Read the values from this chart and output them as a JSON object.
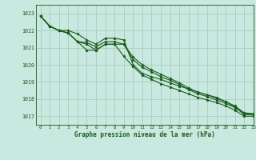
{
  "title": "Graphe pression niveau de la mer (hPa)",
  "bg_color": "#c8e8e0",
  "line_color": "#1a5c1a",
  "grid_color": "#a0c8b8",
  "xlim": [
    -0.5,
    23
  ],
  "ylim": [
    1016.5,
    1023.5
  ],
  "yticks": [
    1017,
    1018,
    1019,
    1020,
    1021,
    1022,
    1023
  ],
  "xticks": [
    0,
    1,
    2,
    3,
    4,
    5,
    6,
    7,
    8,
    9,
    10,
    11,
    12,
    13,
    14,
    15,
    16,
    17,
    18,
    19,
    20,
    21,
    22,
    23
  ],
  "series": [
    [
      1022.85,
      1022.25,
      1022.0,
      1022.0,
      1021.8,
      1021.45,
      1021.2,
      1021.55,
      1021.55,
      1021.45,
      1020.0,
      1019.5,
      1019.3,
      1019.15,
      1018.95,
      1018.75,
      1018.6,
      1018.4,
      1018.25,
      1018.1,
      1017.85,
      1017.55,
      1017.1,
      1017.1
    ],
    [
      1022.85,
      1022.25,
      1022.0,
      1021.85,
      1021.35,
      1021.2,
      1020.85,
      1021.2,
      1021.2,
      1020.5,
      1019.9,
      1019.4,
      1019.15,
      1018.9,
      1018.7,
      1018.5,
      1018.3,
      1018.1,
      1017.95,
      1017.8,
      1017.6,
      1017.35,
      1017.0,
      1017.0
    ],
    [
      1022.85,
      1022.25,
      1022.0,
      1021.85,
      1021.35,
      1020.85,
      1020.85,
      1021.2,
      1021.2,
      1021.2,
      1020.45,
      1020.0,
      1019.7,
      1019.45,
      1019.2,
      1018.95,
      1018.65,
      1018.4,
      1018.25,
      1018.05,
      1017.85,
      1017.6,
      1017.2,
      1017.15
    ],
    [
      1022.85,
      1022.25,
      1022.0,
      1021.85,
      1021.35,
      1021.3,
      1021.05,
      1021.35,
      1021.35,
      1021.2,
      1020.3,
      1019.85,
      1019.6,
      1019.3,
      1019.1,
      1018.85,
      1018.55,
      1018.3,
      1018.15,
      1017.95,
      1017.75,
      1017.5,
      1017.15,
      1017.1
    ]
  ]
}
